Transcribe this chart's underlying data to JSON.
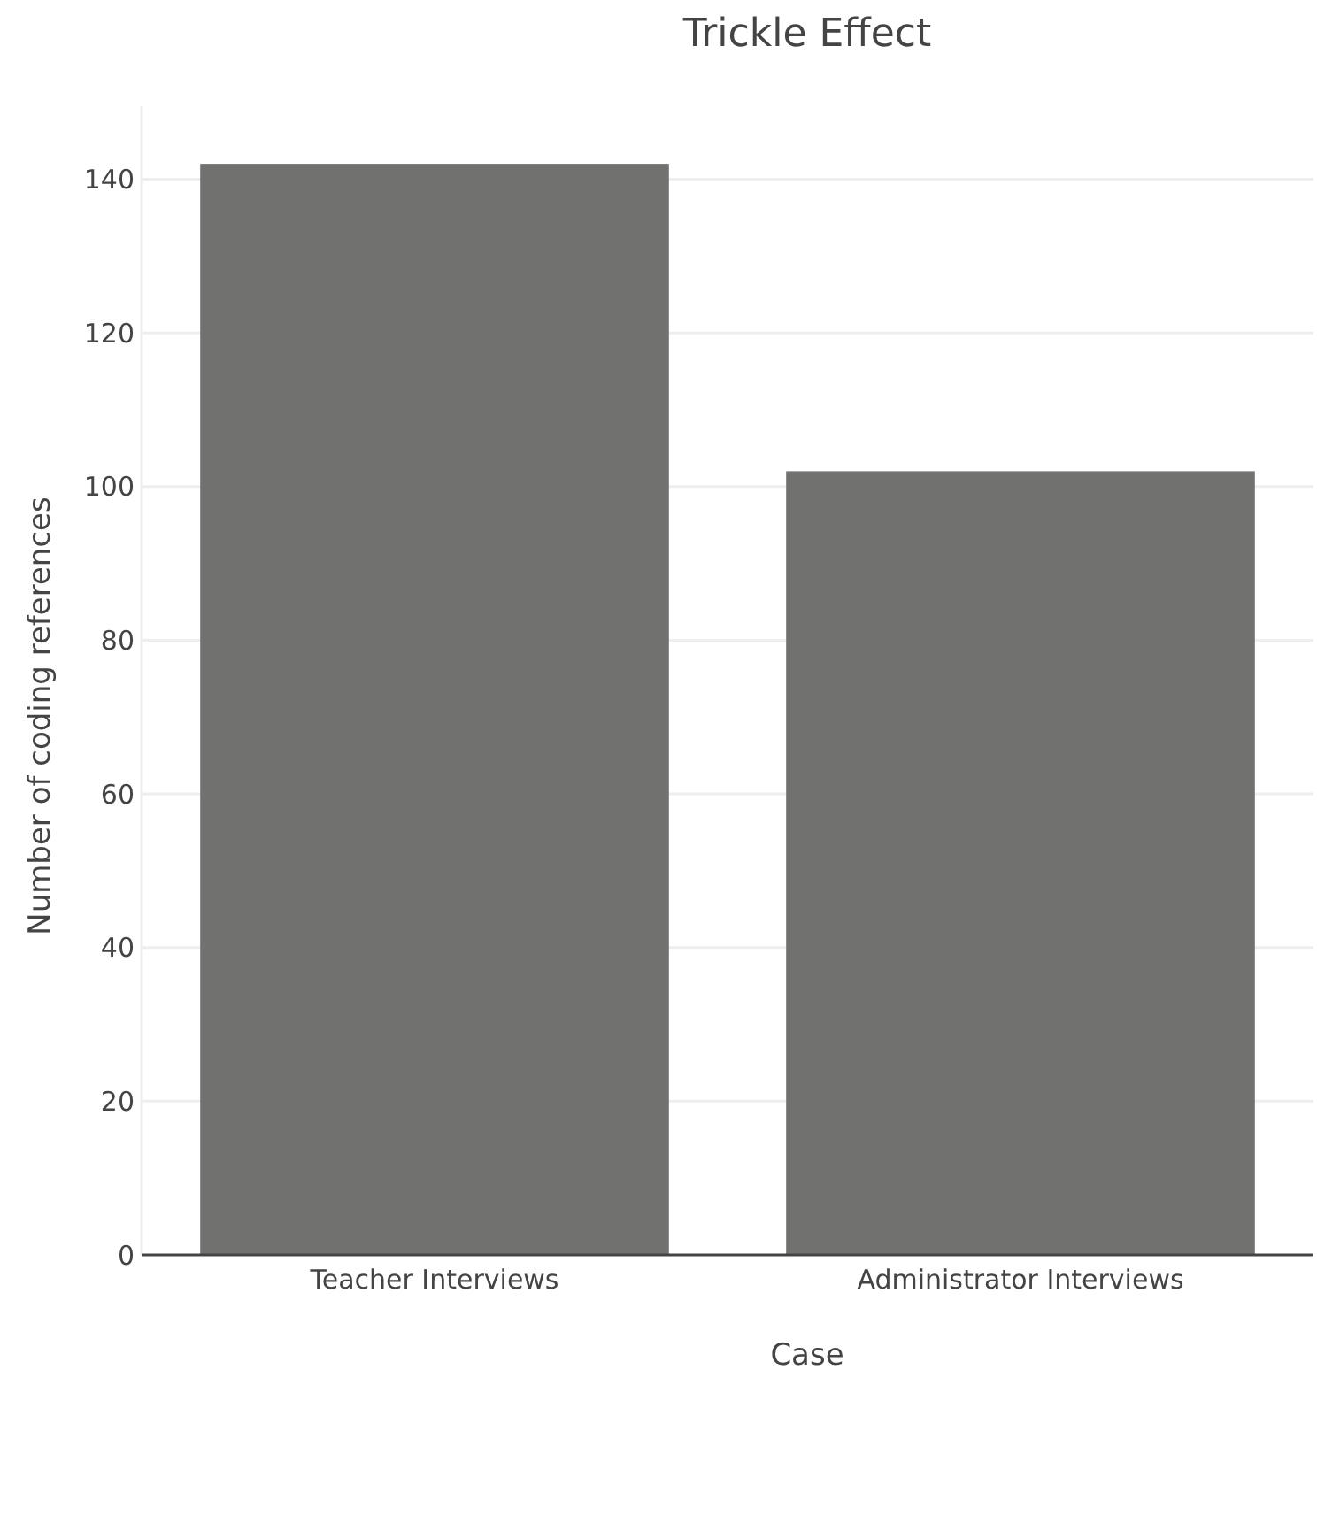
{
  "chart_data": {
    "type": "bar",
    "title": "Trickle Effect",
    "xlabel": "Case",
    "ylabel": "Number of coding references",
    "categories": [
      "Teacher Interviews",
      "Administrator Interviews"
    ],
    "values": [
      142,
      102
    ],
    "color": "#717270",
    "ylim": [
      0,
      149.5
    ],
    "yticks": [
      0,
      20,
      40,
      60,
      80,
      100,
      120,
      140
    ],
    "grid": "y"
  }
}
